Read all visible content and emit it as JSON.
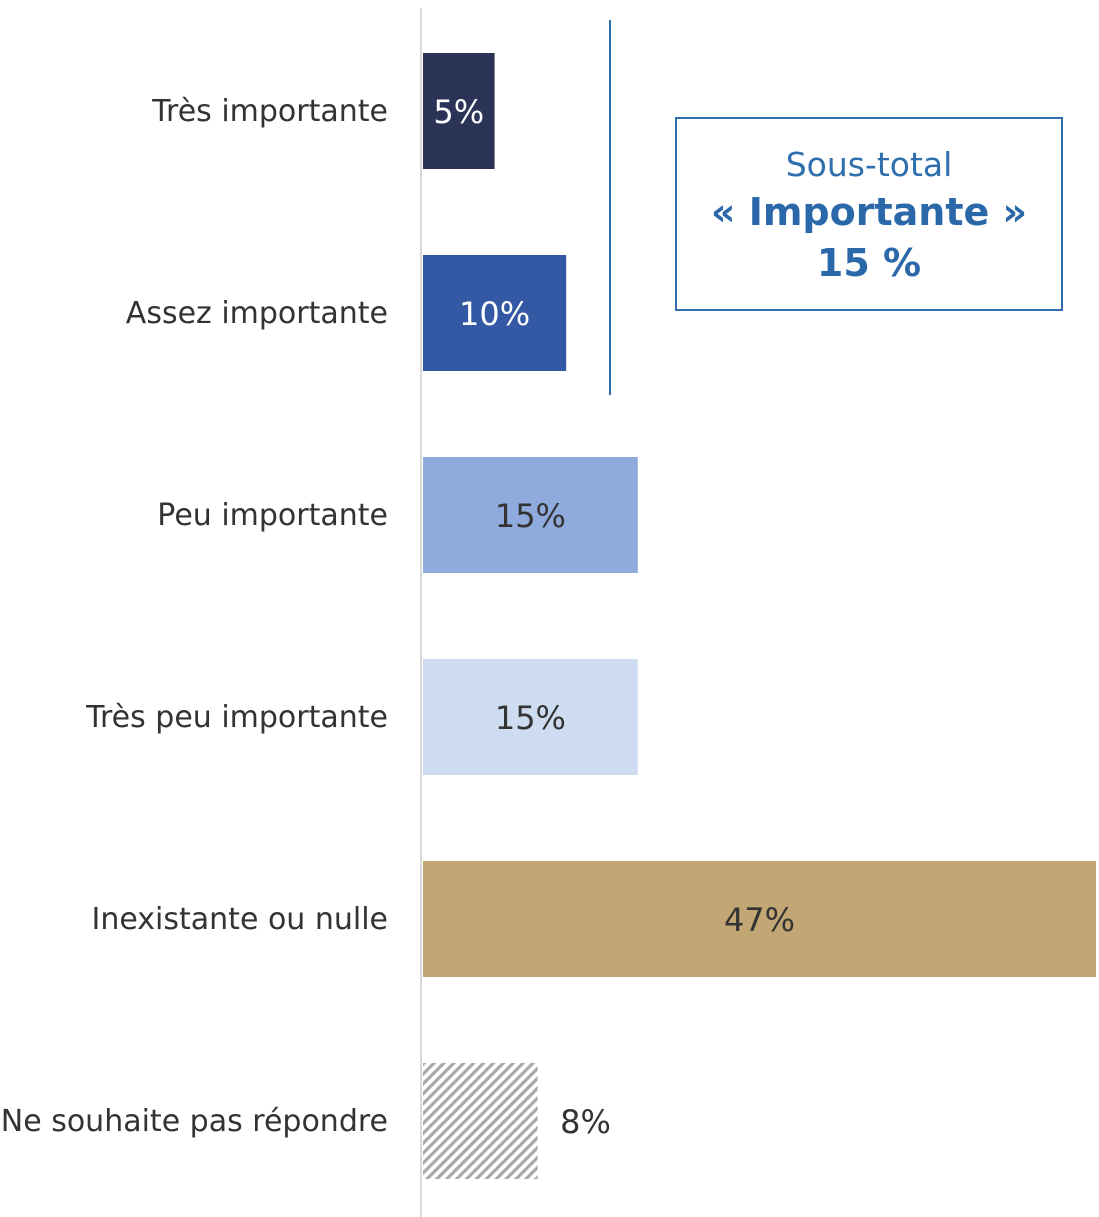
{
  "chart_data": {
    "type": "bar",
    "orientation": "horizontal",
    "categories": [
      "Très importante",
      "Assez importante",
      "Peu importante",
      "Très peu importante",
      "Inexistante ou nulle",
      "Ne souhaite pas répondre"
    ],
    "values": [
      5,
      10,
      15,
      15,
      47,
      8
    ],
    "value_labels": [
      "5%",
      "10%",
      "15%",
      "15%",
      "47%",
      "8%"
    ],
    "colors": [
      "#2b3457",
      "#3358a4",
      "#8faadc",
      "#cddcf1",
      "#c2a774",
      "#d0d0d0"
    ],
    "xlim": [
      0,
      47
    ],
    "grid": false,
    "legend": "none",
    "title": "",
    "xlabel": "",
    "ylabel": "",
    "annotation": {
      "line1": "Sous-total",
      "line2": "« Importante »",
      "line3": "15 %",
      "color": "#2f6fae"
    }
  }
}
